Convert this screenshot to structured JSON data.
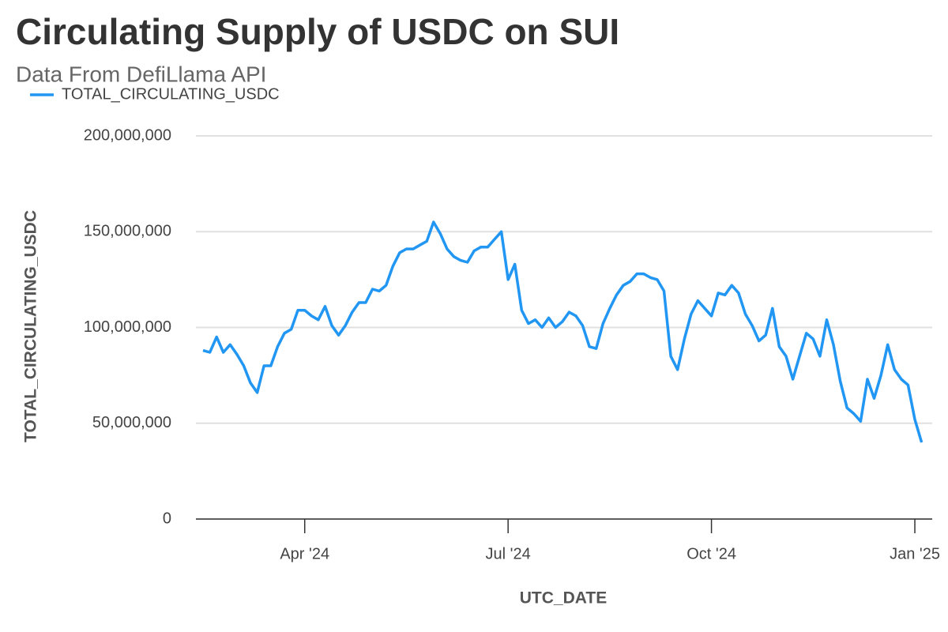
{
  "chart_data": {
    "type": "line",
    "title": "Circulating Supply of USDC on SUI",
    "subtitle": "Data From DefiLlama API",
    "x_label": "UTC_DATE",
    "y_label": "TOTAL_CIRCULATING_USDC",
    "categories": [
      null,
      null,
      null,
      null,
      null,
      null,
      null,
      null,
      null,
      null,
      null,
      null,
      null,
      null,
      null,
      "Apr '24",
      null,
      null,
      null,
      null,
      null,
      null,
      null,
      null,
      null,
      null,
      null,
      null,
      null,
      null,
      null,
      null,
      null,
      null,
      null,
      null,
      null,
      null,
      null,
      null,
      null,
      null,
      null,
      null,
      null,
      "Jul '24",
      null,
      null,
      null,
      null,
      null,
      null,
      null,
      null,
      null,
      null,
      null,
      null,
      null,
      null,
      null,
      null,
      null,
      null,
      null,
      null,
      null,
      null,
      null,
      null,
      null,
      null,
      null,
      null,
      null,
      "Oct '24",
      null,
      null,
      null,
      null,
      null,
      null,
      null,
      null,
      null,
      null,
      null,
      null,
      null,
      null,
      null,
      null,
      null,
      null,
      null,
      null,
      null,
      null,
      null,
      null,
      null,
      null,
      null,
      null,
      null,
      "Jan '25",
      null
    ],
    "series": [
      {
        "name": "TOTAL_CIRCULATING_USDC",
        "color": "#2196f3",
        "values": [
          88000000,
          87000000,
          95000000,
          87000000,
          91000000,
          86000000,
          80000000,
          71000000,
          66000000,
          80000000,
          80000000,
          90000000,
          97000000,
          99000000,
          109000000,
          109000000,
          106000000,
          104000000,
          111000000,
          101000000,
          96000000,
          101000000,
          108000000,
          113000000,
          113000000,
          120000000,
          119000000,
          122000000,
          132000000,
          139000000,
          141000000,
          141000000,
          143000000,
          145000000,
          155000000,
          149000000,
          141000000,
          137000000,
          135000000,
          134000000,
          140000000,
          142000000,
          142000000,
          146000000,
          150000000,
          125000000,
          133000000,
          109000000,
          102000000,
          104000000,
          100000000,
          105000000,
          100000000,
          103000000,
          108000000,
          106000000,
          101000000,
          90000000,
          89000000,
          102000000,
          110000000,
          117000000,
          122000000,
          124000000,
          128000000,
          128000000,
          126000000,
          125000000,
          119000000,
          85000000,
          78000000,
          94000000,
          107000000,
          114000000,
          110000000,
          106000000,
          118000000,
          117000000,
          122000000,
          118000000,
          107000000,
          101000000,
          93000000,
          96000000,
          110000000,
          90000000,
          85000000,
          73000000,
          85000000,
          97000000,
          94000000,
          85000000,
          104000000,
          91000000,
          72000000,
          58000000,
          55000000,
          51000000,
          73000000,
          63000000,
          75000000,
          91000000,
          78000000,
          73000000,
          70000000,
          52000000,
          40000000
        ]
      }
    ],
    "ylim": [
      0,
      200000000
    ],
    "yticks": [
      0,
      {
        "value": 50000000,
        "label": "50,000,000"
      },
      {
        "value": 100000000,
        "label": "100,000,000"
      },
      {
        "value": 150000000,
        "label": "150,000,000"
      },
      {
        "value": 200000000,
        "label": "200,000,000"
      }
    ],
    "grid": true,
    "legend": "top-left"
  }
}
